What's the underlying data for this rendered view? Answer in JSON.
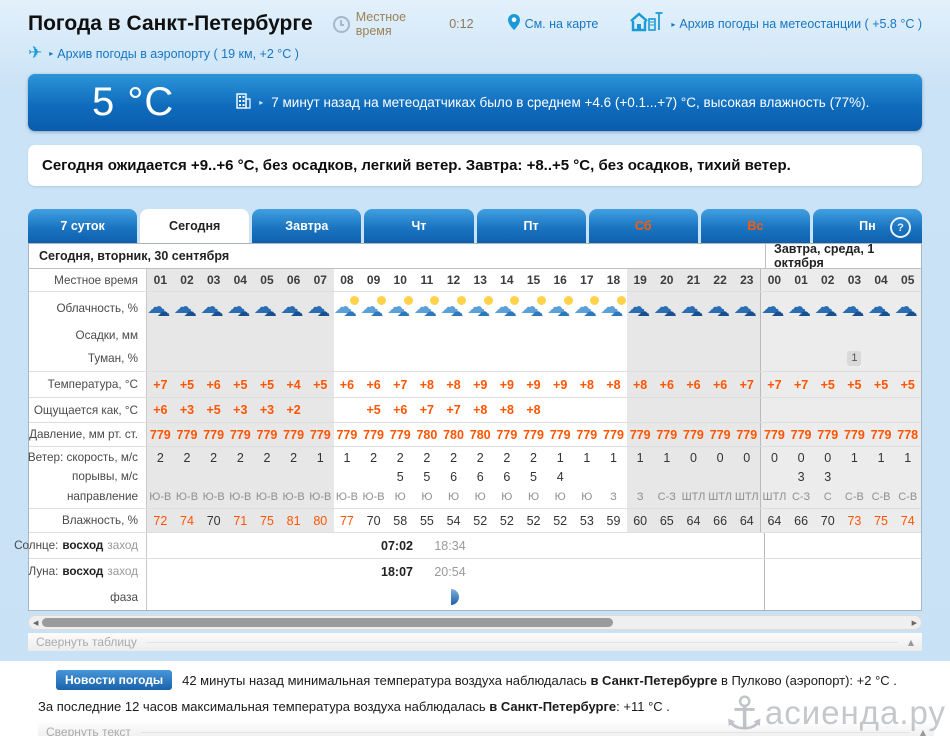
{
  "header": {
    "title": "Погода в Санкт-Петербурге",
    "local_time_label": "Местное время",
    "local_time_value": "0:12",
    "map_link": "См. на карте",
    "station_link": "Архив погоды на метеостанции ( +5.8 °C )",
    "airport_link": "Архив погоды в аэропорту ( 19 км, +2 °C )"
  },
  "current": {
    "temp": "5 °C",
    "sensors_text": "7 минут назад на метеодатчиках было в среднем +4.6 (+0.1...+7) °C, высокая влажность (77%)."
  },
  "summary": "Сегодня ожидается +9..+6 °C, без осадков, легкий ветер. Завтра: +8..+5 °C, без осадков, тихий ветер.",
  "tabs": [
    {
      "label": "7 суток",
      "active": false,
      "weekend": false
    },
    {
      "label": "Сегодня",
      "active": true,
      "weekend": false
    },
    {
      "label": "Завтра",
      "active": false,
      "weekend": false
    },
    {
      "label": "Чт",
      "active": false,
      "weekend": false
    },
    {
      "label": "Пт",
      "active": false,
      "weekend": false
    },
    {
      "label": "Сб",
      "active": false,
      "weekend": true
    },
    {
      "label": "Вс",
      "active": false,
      "weekend": true
    },
    {
      "label": "Пн",
      "active": false,
      "weekend": false
    }
  ],
  "help_label": "?",
  "table": {
    "today_header": "Сегодня, вторник, 30 сентября",
    "tomorrow_header": "Завтра, среда, 1 октября",
    "labels": {
      "time": "Местное время",
      "clouds": "Облачность, %",
      "precip": "Осадки, мм",
      "fog": "Туман, %",
      "temp": "Температура, °C",
      "feels": "Ощущается как, °C",
      "pressure": "Давление, мм рт. ст.",
      "wind": "Ветер: скорость, м/с",
      "gusts": "порывы, м/с",
      "dir": "направление",
      "humidity": "Влажность, %",
      "sun_pre": "Солнце:",
      "sun_bold": "восход",
      "sun_gray": "заход",
      "moon_pre": "Луна:",
      "moon_bold": "восход",
      "moon_gray": "заход",
      "phase": "фаза"
    },
    "hours": [
      "01",
      "02",
      "03",
      "04",
      "05",
      "06",
      "07",
      "08",
      "09",
      "10",
      "11",
      "12",
      "13",
      "14",
      "15",
      "16",
      "17",
      "18",
      "19",
      "20",
      "21",
      "22",
      "23",
      "00",
      "01",
      "02",
      "03",
      "04",
      "05"
    ],
    "sections": [
      "p",
      "p",
      "p",
      "p",
      "p",
      "p",
      "p",
      "",
      "",
      "",
      "",
      "",
      "",
      "",
      "",
      "",
      "",
      "",
      "e",
      "e",
      "e",
      "e",
      "e",
      "t",
      "t",
      "t",
      "t",
      "t",
      "t"
    ],
    "clouds": [
      "n",
      "n",
      "n",
      "n",
      "n",
      "n",
      "n",
      "d",
      "d",
      "d",
      "d",
      "d",
      "d",
      "d",
      "d",
      "d",
      "d",
      "d",
      "n",
      "n",
      "n",
      "n",
      "n",
      "n",
      "n",
      "n",
      "n",
      "n",
      "n"
    ],
    "precip": [
      "",
      "",
      "",
      "",
      "",
      "",
      "",
      "",
      "",
      "",
      "",
      "",
      "",
      "",
      "",
      "",
      "",
      "",
      "",
      "",
      "",
      "",
      "",
      "",
      "",
      "",
      "",
      "",
      ""
    ],
    "fog": [
      "",
      "",
      "",
      "",
      "",
      "",
      "",
      "",
      "",
      "",
      "",
      "",
      "",
      "",
      "",
      "",
      "",
      "",
      "",
      "",
      "",
      "",
      "",
      "",
      "",
      "",
      "1",
      "",
      ""
    ],
    "temperature": [
      "+7",
      "+5",
      "+6",
      "+5",
      "+5",
      "+4",
      "+5",
      "+6",
      "+6",
      "+7",
      "+8",
      "+8",
      "+9",
      "+9",
      "+9",
      "+9",
      "+8",
      "+8",
      "+8",
      "+6",
      "+6",
      "+6",
      "+7",
      "+7",
      "+7",
      "+5",
      "+5",
      "+5",
      "+5"
    ],
    "feels_like": [
      "+6",
      "+3",
      "+5",
      "+3",
      "+3",
      "+2",
      "",
      "",
      "+5",
      "+6",
      "+7",
      "+7",
      "+8",
      "+8",
      "+8",
      "",
      "",
      "",
      "",
      "",
      "",
      "",
      "",
      "",
      "",
      "",
      "",
      "",
      ""
    ],
    "pressure": [
      "779",
      "779",
      "779",
      "779",
      "779",
      "779",
      "779",
      "779",
      "779",
      "779",
      "780",
      "780",
      "780",
      "779",
      "779",
      "779",
      "779",
      "779",
      "779",
      "779",
      "779",
      "779",
      "779",
      "779",
      "779",
      "779",
      "779",
      "779",
      "778"
    ],
    "wind_speed": [
      "2",
      "2",
      "2",
      "2",
      "2",
      "2",
      "1",
      "1",
      "2",
      "2",
      "2",
      "2",
      "2",
      "2",
      "2",
      "1",
      "1",
      "1",
      "1",
      "1",
      "0",
      "0",
      "0",
      "0",
      "0",
      "0",
      "1",
      "1",
      "1"
    ],
    "wind_gusts": [
      "",
      "",
      "",
      "",
      "",
      "",
      "",
      "",
      "",
      "5",
      "5",
      "6",
      "6",
      "6",
      "5",
      "4",
      "",
      "",
      "",
      "",
      "",
      "",
      "",
      "",
      "3",
      "3",
      "",
      "",
      ""
    ],
    "wind_dir": [
      "Ю-В",
      "Ю-В",
      "Ю-В",
      "Ю-В",
      "Ю-В",
      "Ю-В",
      "Ю-В",
      "Ю-В",
      "Ю-В",
      "Ю",
      "Ю",
      "Ю",
      "Ю",
      "Ю",
      "Ю",
      "Ю",
      "Ю",
      "З",
      "З",
      "С-З",
      "ШТЛ",
      "ШТЛ",
      "ШТЛ",
      "ШТЛ",
      "С-З",
      "С",
      "С-В",
      "С-В",
      "С-В"
    ],
    "humidity": [
      "72",
      "74",
      "70",
      "71",
      "75",
      "81",
      "80",
      "77",
      "70",
      "58",
      "55",
      "54",
      "52",
      "52",
      "52",
      "52",
      "53",
      "59",
      "60",
      "65",
      "64",
      "66",
      "64",
      "64",
      "66",
      "70",
      "73",
      "75",
      "74"
    ],
    "sun": {
      "rise": "07:02",
      "set": "18:34"
    },
    "moon": {
      "rise": "18:07",
      "set": "20:54"
    }
  },
  "collapse_table_label": "Свернуть таблицу",
  "news": {
    "badge": "Новости погоды",
    "line1": [
      {
        "t": "42 минуты назад минимальная температура воздуха наблюдалась ",
        "b": false
      },
      {
        "t": "в Санкт-Петербурге",
        "b": true
      },
      {
        "t": " в Пулково (аэропорт): +2 °C .",
        "b": false
      }
    ],
    "line2": [
      {
        "t": "За последние 12 часов максимальная температура воздуха наблюдалась ",
        "b": false
      },
      {
        "t": "в Санкт-Петербурге",
        "b": true
      },
      {
        "t": ": +11 °C .",
        "b": false
      }
    ]
  },
  "collapse_text_label": "Свернуть текст",
  "watermark": "асиенда.ру",
  "colors": {
    "accent_orange": "#ff5400",
    "link_blue": "#1777c4",
    "weekend_red": "#ff5a00",
    "banner_blue_top": "#2d95d9",
    "banner_blue_bottom": "#0a5cad",
    "section_gray": "#e7e7e7"
  }
}
